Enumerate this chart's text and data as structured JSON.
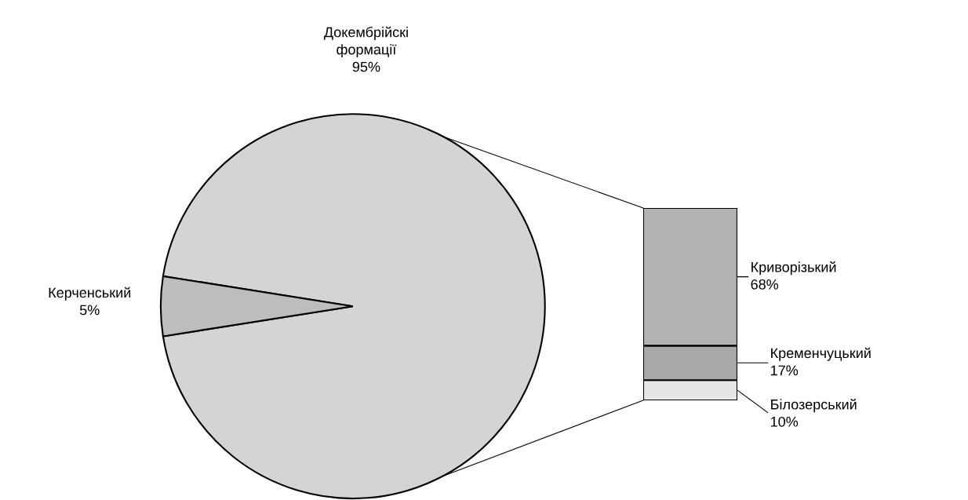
{
  "chart_data": [
    {
      "type": "pie",
      "categories": [
        "Докембрійскі\nформації",
        "Керченський"
      ],
      "values": [
        95,
        5
      ],
      "colors": [
        "#d4d4d4",
        "#bdbdbd"
      ],
      "value_labels": [
        "95%",
        "5%"
      ]
    },
    {
      "type": "bar",
      "stacked": true,
      "categories": [
        null
      ],
      "tick_labels": false,
      "series": [
        {
          "name": "Білозерський",
          "color": "#e6e6e6",
          "values": [
            10
          ],
          "value_labels": [
            "10%"
          ]
        },
        {
          "name": "Кременчуцький",
          "color": "#a9a9a9",
          "values": [
            17
          ],
          "value_labels": [
            "17%"
          ]
        },
        {
          "name": "Криворізький",
          "color": "#b3b3b3",
          "values": [
            68
          ],
          "value_labels": [
            "68%"
          ]
        }
      ]
    }
  ]
}
